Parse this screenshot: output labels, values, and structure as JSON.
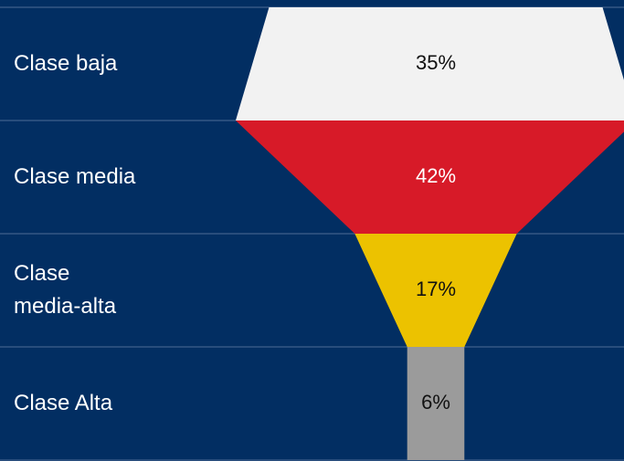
{
  "chart_data": {
    "type": "funnel",
    "categories": [
      "Clase baja",
      "Clase media",
      "Clase media-alta",
      "Clase Alta"
    ],
    "values": [
      35,
      42,
      17,
      6
    ],
    "value_labels": [
      "35%",
      "42%",
      "17%",
      "6%"
    ],
    "colors": [
      "#f2f2f2",
      "#d71a28",
      "#ecc200",
      "#9b9b9b"
    ]
  }
}
